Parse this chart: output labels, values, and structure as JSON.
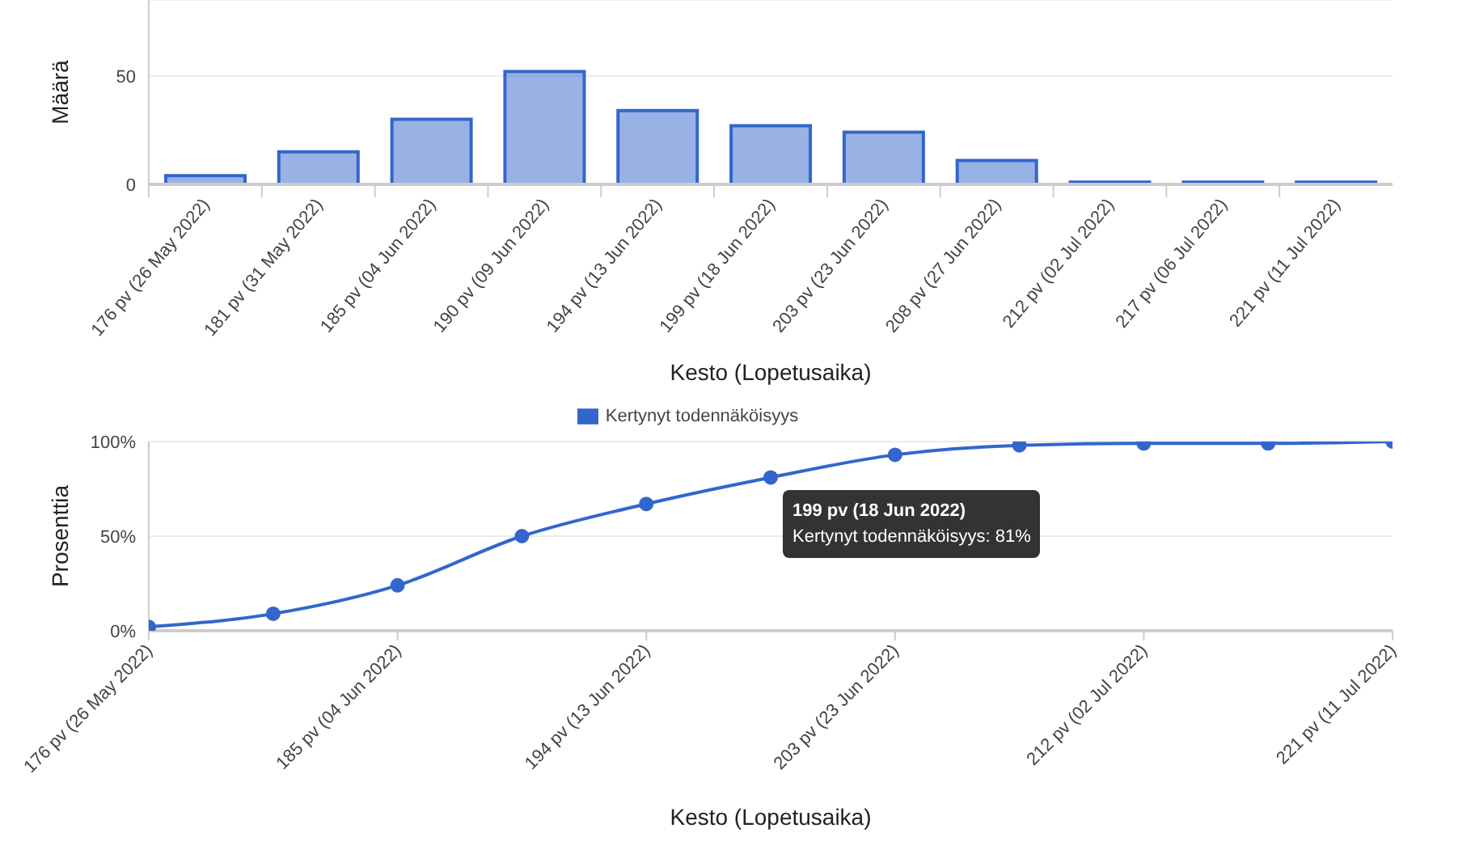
{
  "chart_data": [
    {
      "type": "bar",
      "categories": [
        "176 pv (26 May 2022)",
        "181 pv (31 May 2022)",
        "185 pv (04 Jun 2022)",
        "190 pv (09 Jun 2022)",
        "194 pv (13 Jun 2022)",
        "199 pv (18 Jun 2022)",
        "203 pv (23 Jun 2022)",
        "208 pv (27 Jun 2022)",
        "212 pv (02 Jul 2022)",
        "217 pv (06 Jul 2022)",
        "221 pv (11 Jul 2022)"
      ],
      "values": [
        4,
        15,
        30,
        52,
        34,
        27,
        24,
        11,
        1,
        1,
        1
      ],
      "color": "#3366cc",
      "xlabel": "Kesto (Lopetusaika)",
      "ylabel": "Määrä",
      "ylim": [
        0,
        85
      ],
      "yticks": [
        0,
        50
      ],
      "grid": "y"
    },
    {
      "type": "line",
      "categories": [
        "176 pv (26 May 2022)",
        null,
        "185 pv (04 Jun 2022)",
        null,
        "194 pv (13 Jun 2022)",
        null,
        "203 pv (23 Jun 2022)",
        null,
        "212 pv (02 Jul 2022)",
        null,
        "221 pv (11 Jul 2022)"
      ],
      "series": [
        {
          "name": "Kertynyt todennäköisyys",
          "color": "#3366cc",
          "values": [
            2,
            9,
            24,
            50,
            67,
            81,
            93,
            98,
            99,
            99,
            100
          ]
        }
      ],
      "xlabel": "Kesto (Lopetusaika)",
      "ylabel": "Prosenttia",
      "ylim": [
        0,
        100
      ],
      "yticks": [
        {
          "value": 0,
          "label": "0%"
        },
        {
          "value": 50,
          "label": "50%"
        },
        {
          "value": 100,
          "label": "100%"
        }
      ],
      "grid": "y",
      "legend": "top",
      "marker": "circle",
      "annotations": [
        "199 pv (18 Jun 2022)",
        "Kertynyt todennäköisyys: 81%"
      ]
    }
  ]
}
